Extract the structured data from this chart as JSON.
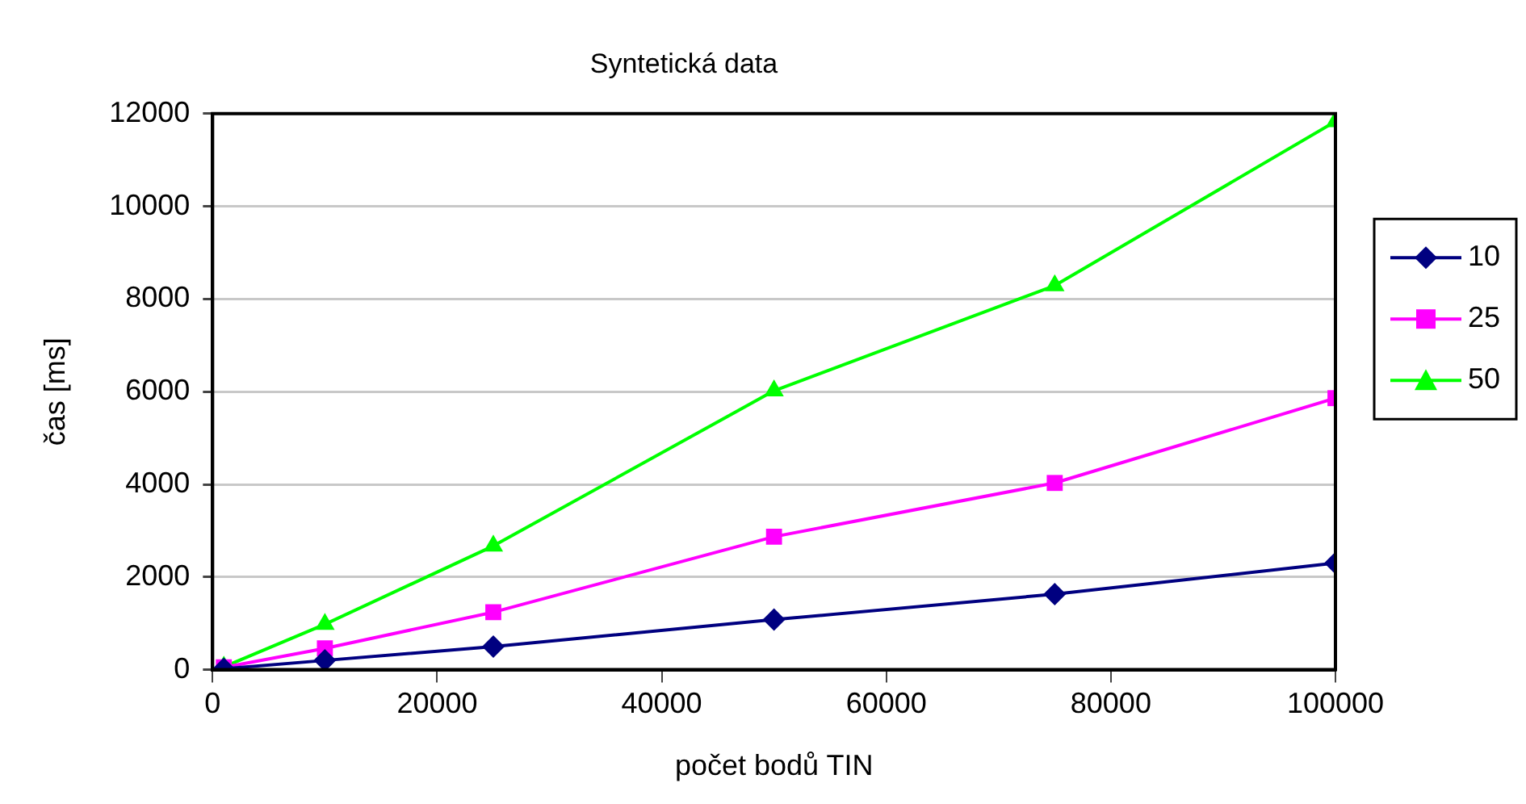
{
  "chart_data": {
    "type": "line",
    "title": "Syntetická data",
    "xlabel": "počet bodů TIN",
    "ylabel": "čas [ms]",
    "x": [
      1000,
      10000,
      25000,
      50000,
      75000,
      100000
    ],
    "series": [
      {
        "name": "10",
        "color": "#000080",
        "marker": "diamond",
        "values": [
          20,
          200,
          500,
          1080,
          1630,
          2300
        ]
      },
      {
        "name": "25",
        "color": "#ff00ff",
        "marker": "square",
        "values": [
          50,
          460,
          1240,
          2870,
          4030,
          5860
        ]
      },
      {
        "name": "50",
        "color": "#00ff00",
        "marker": "triangle",
        "values": [
          60,
          980,
          2670,
          6020,
          8290,
          11830
        ]
      }
    ],
    "xlim": [
      0,
      100000
    ],
    "xticks": [
      0,
      20000,
      40000,
      60000,
      80000,
      100000
    ],
    "ylim": [
      0,
      12000
    ],
    "yticks": [
      0,
      2000,
      4000,
      6000,
      8000,
      10000,
      12000
    ],
    "grid": "y",
    "legend": "right",
    "line_style": "solid"
  }
}
